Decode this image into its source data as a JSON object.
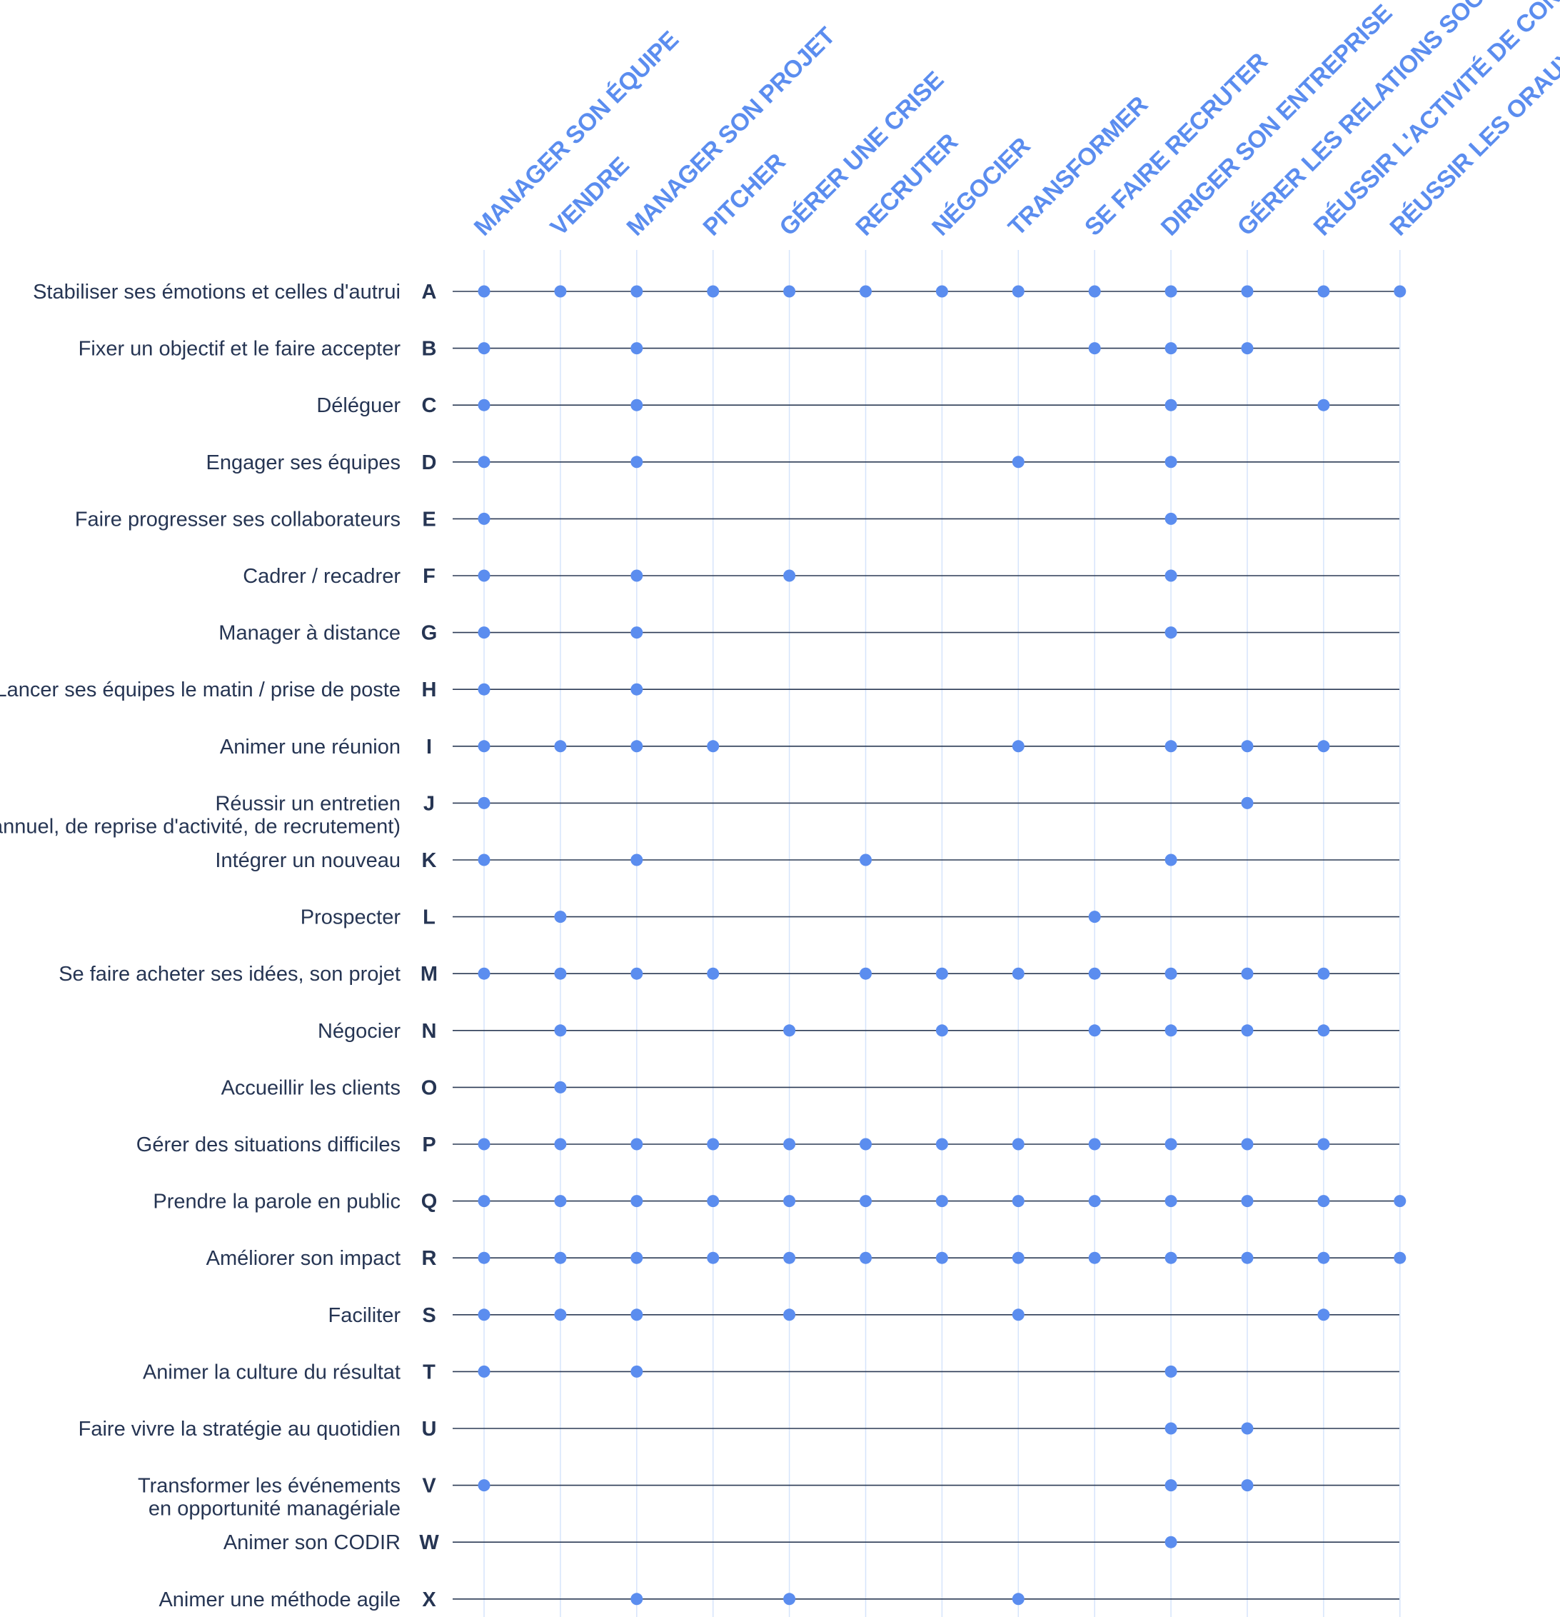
{
  "chart_data": {
    "type": "matrix",
    "columns": [
      "MANAGER SON ÉQUIPE",
      "VENDRE",
      "MANAGER SON PROJET",
      "PITCHER",
      "GÉRER UNE CRISE",
      "RECRUTER",
      "NÉGOCIER",
      "TRANSFORMER",
      "SE FAIRE RECRUTER",
      "DIRIGER SON ENTREPRISE",
      "GÉRER LES RELATIONS SOCIALES",
      "RÉUSSIR L'ACTIVITÉ DE CONSEIL",
      "RÉUSSIR LES ORAUX"
    ],
    "rows": [
      {
        "letter": "A",
        "label": [
          "Stabiliser ses émotions et celles d'autrui"
        ],
        "cols": [
          0,
          1,
          2,
          3,
          4,
          5,
          6,
          7,
          8,
          9,
          10,
          11,
          12
        ]
      },
      {
        "letter": "B",
        "label": [
          "Fixer un objectif et le faire accepter"
        ],
        "cols": [
          0,
          2,
          8,
          9,
          10
        ]
      },
      {
        "letter": "C",
        "label": [
          "Déléguer"
        ],
        "cols": [
          0,
          2,
          9,
          11
        ]
      },
      {
        "letter": "D",
        "label": [
          "Engager ses équipes"
        ],
        "cols": [
          0,
          2,
          7,
          9
        ]
      },
      {
        "letter": "E",
        "label": [
          "Faire progresser ses collaborateurs"
        ],
        "cols": [
          0,
          9
        ]
      },
      {
        "letter": "F",
        "label": [
          "Cadrer / recadrer"
        ],
        "cols": [
          0,
          2,
          4,
          9
        ]
      },
      {
        "letter": "G",
        "label": [
          "Manager à distance"
        ],
        "cols": [
          0,
          2,
          9
        ]
      },
      {
        "letter": "H",
        "label": [
          "Lancer ses équipes le matin / prise de poste"
        ],
        "cols": [
          0,
          2
        ]
      },
      {
        "letter": "I",
        "label": [
          "Animer une réunion"
        ],
        "cols": [
          0,
          1,
          2,
          3,
          7,
          9,
          10,
          11
        ]
      },
      {
        "letter": "J",
        "label": [
          "Réussir un entretien",
          "(annuel, de reprise d'activité, de recrutement)"
        ],
        "cols": [
          0,
          10
        ]
      },
      {
        "letter": "K",
        "label": [
          "Intégrer un nouveau"
        ],
        "cols": [
          0,
          2,
          5,
          9
        ]
      },
      {
        "letter": "L",
        "label": [
          "Prospecter"
        ],
        "cols": [
          1,
          8
        ]
      },
      {
        "letter": "M",
        "label": [
          "Se faire acheter ses idées, son projet"
        ],
        "cols": [
          0,
          1,
          2,
          3,
          5,
          6,
          7,
          8,
          9,
          10,
          11
        ]
      },
      {
        "letter": "N",
        "label": [
          "Négocier"
        ],
        "cols": [
          1,
          4,
          6,
          8,
          9,
          10,
          11
        ]
      },
      {
        "letter": "O",
        "label": [
          "Accueillir les clients"
        ],
        "cols": [
          1
        ]
      },
      {
        "letter": "P",
        "label": [
          "Gérer des situations difficiles"
        ],
        "cols": [
          0,
          1,
          2,
          3,
          4,
          5,
          6,
          7,
          8,
          9,
          10,
          11
        ]
      },
      {
        "letter": "Q",
        "label": [
          "Prendre la parole en public"
        ],
        "cols": [
          0,
          1,
          2,
          3,
          4,
          5,
          6,
          7,
          8,
          9,
          10,
          11,
          12
        ]
      },
      {
        "letter": "R",
        "label": [
          "Améliorer son impact"
        ],
        "cols": [
          0,
          1,
          2,
          3,
          4,
          5,
          6,
          7,
          8,
          9,
          10,
          11,
          12
        ]
      },
      {
        "letter": "S",
        "label": [
          "Faciliter"
        ],
        "cols": [
          0,
          1,
          2,
          4,
          7,
          11
        ]
      },
      {
        "letter": "T",
        "label": [
          "Animer la culture du résultat"
        ],
        "cols": [
          0,
          2,
          9
        ]
      },
      {
        "letter": "U",
        "label": [
          "Faire vivre la stratégie au quotidien"
        ],
        "cols": [
          9,
          10
        ]
      },
      {
        "letter": "V",
        "label": [
          "Transformer les événements",
          "en opportunité managériale"
        ],
        "cols": [
          0,
          9,
          10
        ]
      },
      {
        "letter": "W",
        "label": [
          "Animer son CODIR"
        ],
        "cols": [
          9
        ]
      },
      {
        "letter": "X",
        "label": [
          "Animer une méthode agile"
        ],
        "cols": [
          2,
          4,
          7
        ]
      }
    ],
    "colors": {
      "accent": "#5b8def",
      "text": "#263553",
      "line": "#2b3a55",
      "grid": "#d6e4fb"
    }
  }
}
